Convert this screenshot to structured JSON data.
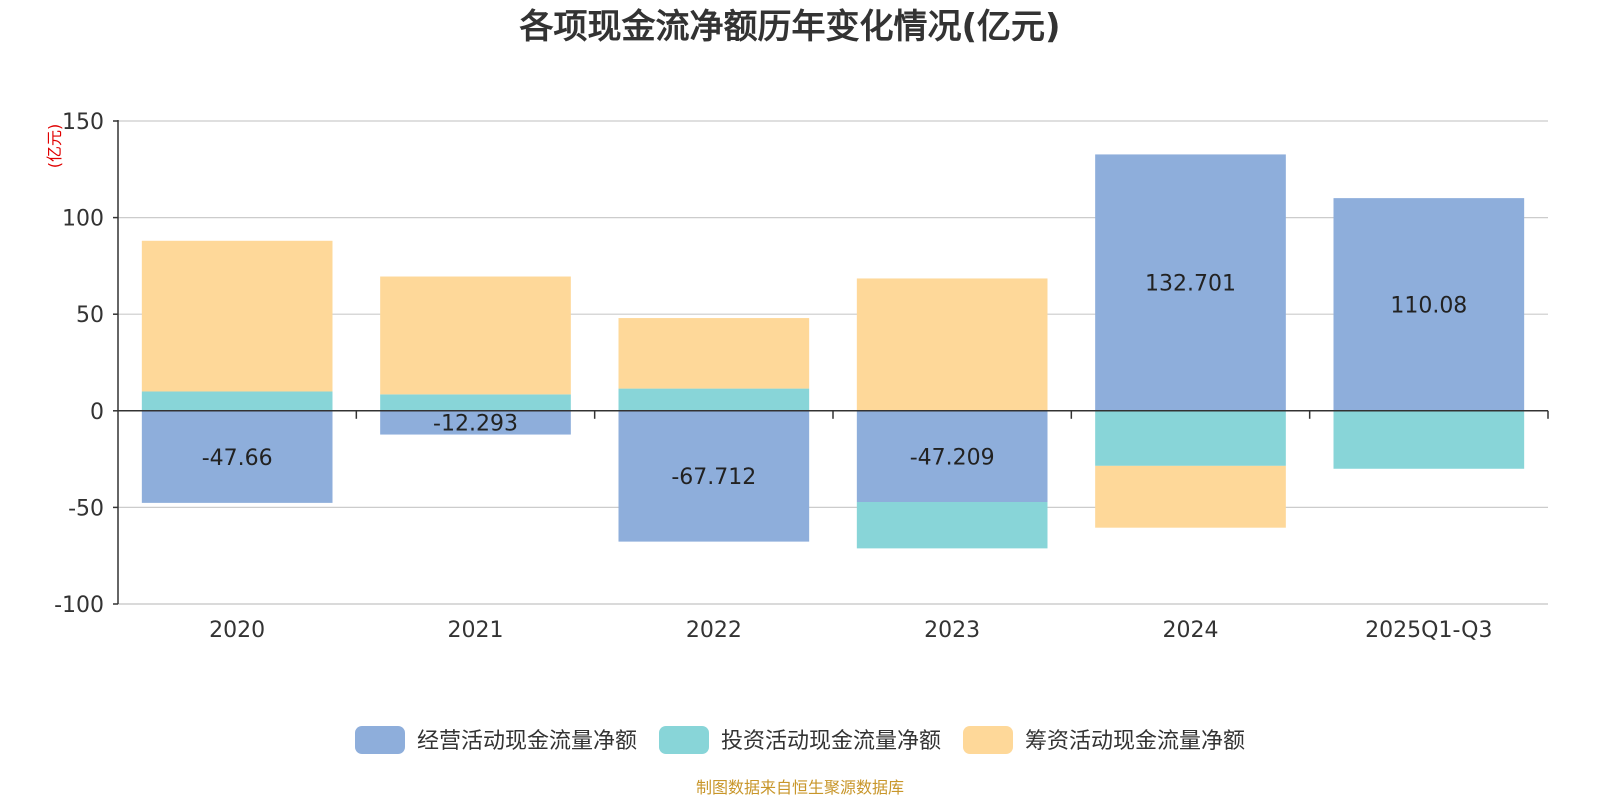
{
  "chart_data": {
    "type": "bar",
    "stacked": true,
    "title": "各项现金流净额历年变化情况(亿元)",
    "ylabel": "(亿元)",
    "ylim": [
      -100,
      150
    ],
    "yticks": [
      150,
      100,
      50,
      0,
      -50,
      -100
    ],
    "grid": true,
    "legend_position": "bottom",
    "categories": [
      "2020",
      "2021",
      "2022",
      "2023",
      "2024",
      "2025Q1-Q3"
    ],
    "series": [
      {
        "name": "经营活动现金流量净额",
        "color": "#8eaedb",
        "values": [
          -47.66,
          -12.293,
          -67.712,
          -47.209,
          132.701,
          110.08
        ],
        "labels": [
          "-47.66",
          "-12.293",
          "-67.712",
          "-47.209",
          "132.701",
          "110.08"
        ]
      },
      {
        "name": "投资活动现金流量净额",
        "color": "#88d5d8",
        "values": [
          10,
          8.5,
          11.5,
          -24,
          -28.5,
          -30
        ]
      },
      {
        "name": "筹资活动现金流量净额",
        "color": "#fed899",
        "values": [
          78,
          61,
          36.5,
          68.5,
          -32,
          0
        ]
      }
    ],
    "source": "制图数据来自恒生聚源数据库"
  }
}
